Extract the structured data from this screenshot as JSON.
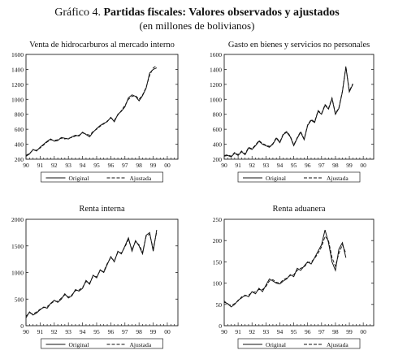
{
  "header": {
    "title_prefix": "Gráfico 4.",
    "title_main": "Partidas fiscales: Valores observados y ajustados",
    "subtitle": "(en millones de bolivianos)"
  },
  "chart_data": [
    {
      "type": "line",
      "title": "Venta de hidrocarburos al mercado interno",
      "ylim": [
        200,
        1600
      ],
      "yticks": [
        200,
        400,
        600,
        800,
        1000,
        1200,
        1400,
        1600
      ],
      "xlim": [
        1990,
        2000.75
      ],
      "xticks": [
        "90",
        "91",
        "92",
        "93",
        "94",
        "95",
        "96",
        "97",
        "98",
        "99",
        "00"
      ],
      "legend": [
        "Original",
        "Ajustada"
      ],
      "legend_position": "bottom",
      "series": [
        {
          "name": "Original",
          "style": "solid",
          "x_start": 1990,
          "step": 0.25,
          "values": [
            240,
            270,
            330,
            310,
            360,
            400,
            440,
            470,
            440,
            450,
            490,
            480,
            470,
            500,
            520,
            510,
            560,
            530,
            500,
            560,
            610,
            650,
            680,
            700,
            760,
            700,
            800,
            840,
            900,
            1020,
            1060,
            1040,
            980,
            1050,
            1150,
            1350,
            1400,
            1420
          ]
        },
        {
          "name": "Ajustada",
          "style": "dashed",
          "x_start": 1990,
          "step": 0.25,
          "values": [
            250,
            280,
            320,
            320,
            350,
            390,
            430,
            460,
            450,
            460,
            480,
            470,
            480,
            490,
            510,
            520,
            550,
            540,
            520,
            570,
            600,
            640,
            670,
            710,
            750,
            720,
            790,
            850,
            920,
            1000,
            1040,
            1050,
            1000,
            1060,
            1160,
            1320,
            1420,
            1450
          ]
        }
      ]
    },
    {
      "type": "line",
      "title": "Gasto en bienes y servicios no personales",
      "ylim": [
        200,
        1600
      ],
      "yticks": [
        200,
        400,
        600,
        800,
        1000,
        1200,
        1400,
        1600
      ],
      "xlim": [
        1990,
        2000.75
      ],
      "xticks": [
        "90",
        "91",
        "92",
        "93",
        "94",
        "95",
        "96",
        "97",
        "98",
        "99",
        "00"
      ],
      "legend": [
        "Original",
        "Ajustada"
      ],
      "legend_position": "bottom",
      "series": [
        {
          "name": "Original",
          "style": "solid",
          "x_start": 1990,
          "step": 0.25,
          "values": [
            240,
            250,
            230,
            280,
            250,
            300,
            260,
            350,
            330,
            380,
            440,
            400,
            380,
            360,
            400,
            480,
            420,
            530,
            560,
            500,
            380,
            480,
            560,
            460,
            650,
            720,
            690,
            840,
            800,
            920,
            870,
            1010,
            800,
            880,
            1100,
            1430,
            1100,
            1200
          ]
        },
        {
          "name": "Ajustada",
          "style": "dashed",
          "x_start": 1990,
          "step": 0.25,
          "values": [
            250,
            260,
            240,
            290,
            260,
            310,
            270,
            360,
            340,
            390,
            450,
            410,
            390,
            370,
            410,
            490,
            430,
            540,
            570,
            510,
            390,
            490,
            570,
            470,
            660,
            730,
            700,
            850,
            810,
            930,
            880,
            1020,
            810,
            890,
            1110,
            1440,
            1110,
            1210
          ]
        }
      ]
    },
    {
      "type": "line",
      "title": "Renta interna",
      "ylim": [
        0,
        2000
      ],
      "yticks": [
        0,
        500,
        1000,
        1500,
        2000
      ],
      "xlim": [
        1990,
        2000.75
      ],
      "xticks": [
        "90",
        "91",
        "92",
        "93",
        "94",
        "95",
        "96",
        "97",
        "98",
        "99",
        "00"
      ],
      "legend": [
        "Original",
        "Ajustada"
      ],
      "legend_position": "bottom",
      "series": [
        {
          "name": "Original",
          "style": "solid",
          "x_start": 1990,
          "step": 0.25,
          "values": [
            150,
            260,
            200,
            240,
            300,
            350,
            330,
            420,
            480,
            440,
            500,
            600,
            520,
            560,
            680,
            650,
            700,
            850,
            780,
            950,
            900,
            1050,
            1000,
            1150,
            1300,
            1200,
            1400,
            1350,
            1500,
            1650,
            1400,
            1600,
            1500,
            1350,
            1700,
            1750,
            1400,
            1800
          ]
        },
        {
          "name": "Ajustada",
          "style": "dashed",
          "x_start": 1990,
          "step": 0.25,
          "values": [
            180,
            240,
            220,
            260,
            310,
            340,
            360,
            410,
            460,
            460,
            520,
            580,
            540,
            580,
            660,
            670,
            720,
            830,
            800,
            930,
            920,
            1030,
            1020,
            1170,
            1280,
            1220,
            1380,
            1370,
            1480,
            1620,
            1430,
            1580,
            1520,
            1380,
            1680,
            1720,
            1450,
            1760
          ]
        }
      ]
    },
    {
      "type": "line",
      "title": "Renta aduanera",
      "ylim": [
        0,
        250
      ],
      "yticks": [
        0,
        50,
        100,
        150,
        200,
        250
      ],
      "xlim": [
        1990,
        2000.75
      ],
      "xticks": [
        "90",
        "91",
        "92",
        "93",
        "94",
        "95",
        "96",
        "97",
        "98",
        "99",
        "00"
      ],
      "legend": [
        "Original",
        "Ajustada"
      ],
      "legend_position": "bottom",
      "series": [
        {
          "name": "Original",
          "style": "solid",
          "x_start": 1990,
          "step": 0.25,
          "values": [
            55,
            52,
            44,
            50,
            60,
            65,
            72,
            68,
            80,
            75,
            88,
            80,
            95,
            110,
            105,
            100,
            98,
            105,
            110,
            120,
            115,
            135,
            130,
            140,
            150,
            145,
            160,
            175,
            190,
            225,
            195,
            150,
            130,
            180,
            195,
            160
          ]
        },
        {
          "name": "Ajustada",
          "style": "dashed",
          "x_start": 1990,
          "step": 0.25,
          "values": [
            58,
            50,
            48,
            52,
            58,
            68,
            70,
            72,
            78,
            80,
            85,
            85,
            92,
            105,
            108,
            102,
            100,
            108,
            112,
            118,
            120,
            130,
            135,
            138,
            148,
            150,
            158,
            170,
            185,
            210,
            200,
            160,
            140,
            170,
            190,
            170
          ]
        }
      ]
    }
  ]
}
